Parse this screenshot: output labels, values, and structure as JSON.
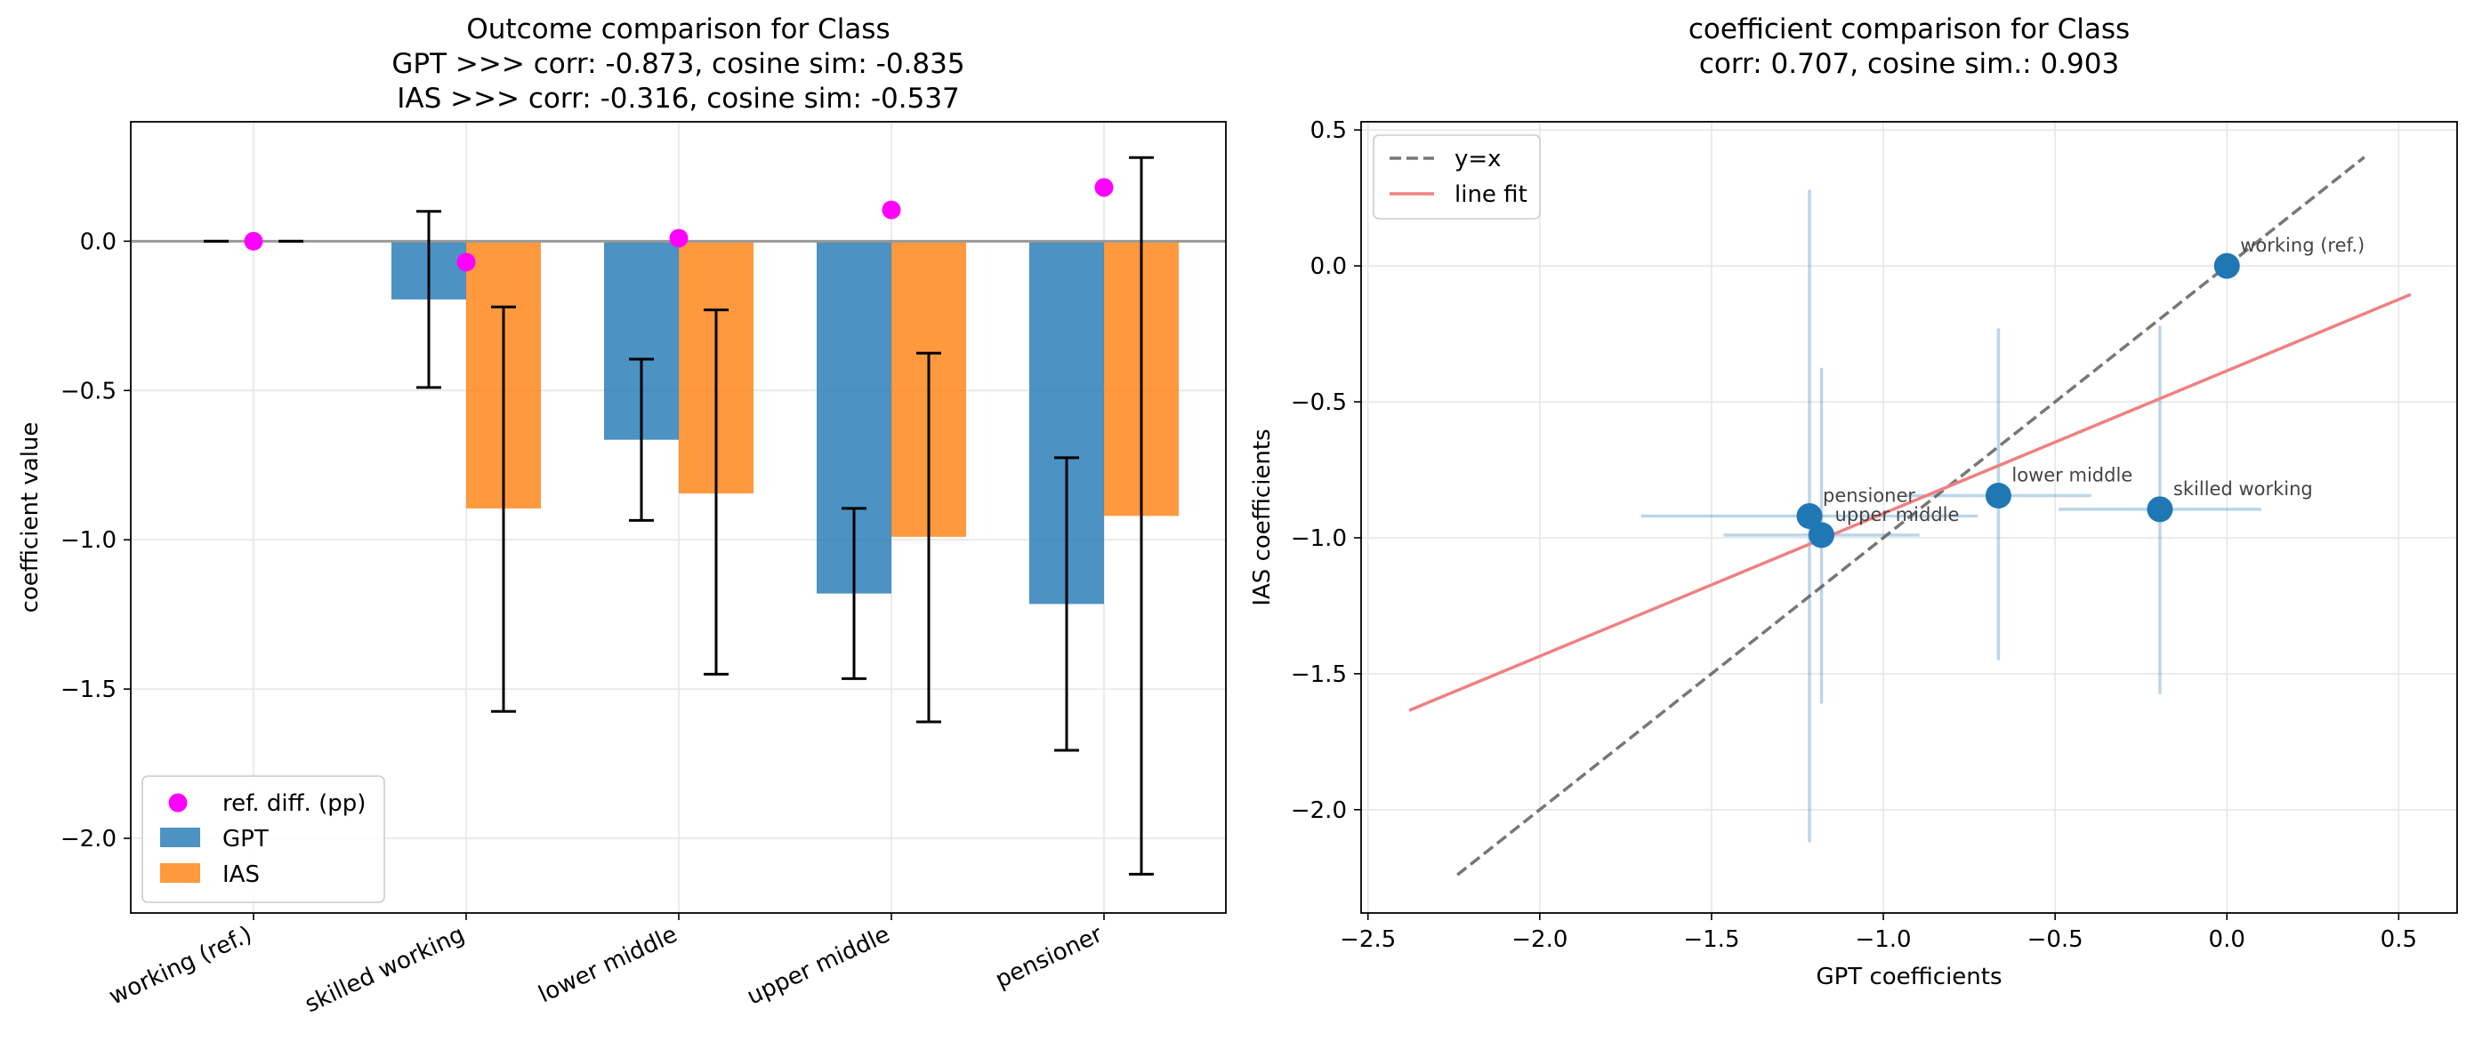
{
  "chart_data": [
    {
      "type": "bar",
      "title_lines": [
        "Outcome comparison for Class",
        "GPT >>> corr: -0.873,  cosine sim: -0.835",
        "IAS >>> corr: -0.316,  cosine sim: -0.537"
      ],
      "xlabel": "",
      "ylabel": "coefficient value",
      "ylim": [
        -2.25,
        0.4
      ],
      "yticks": [
        0.0,
        -0.5,
        -1.0,
        -1.5,
        -2.0
      ],
      "ytick_labels": [
        "0.0",
        "−0.5",
        "−1.0",
        "−1.5",
        "−2.0"
      ],
      "categories": [
        "working (ref.)",
        "skilled working",
        "lower middle",
        "upper middle",
        "pensioner"
      ],
      "series": [
        {
          "name": "GPT",
          "color": "#1f77b4",
          "values": [
            0.0,
            -0.195,
            -0.665,
            -1.18,
            -1.215
          ],
          "ci_low": [
            0.0,
            -0.49,
            -0.935,
            -1.465,
            -1.705
          ],
          "ci_high": [
            0.0,
            0.1,
            -0.395,
            -0.895,
            -0.725
          ]
        },
        {
          "name": "IAS",
          "color": "#ff7f0e",
          "values": [
            0.0,
            -0.895,
            -0.845,
            -0.99,
            -0.92
          ],
          "ci_low": [
            0.0,
            -1.575,
            -1.45,
            -1.61,
            -2.12
          ],
          "ci_high": [
            0.0,
            -0.22,
            -0.23,
            -0.375,
            0.28
          ]
        }
      ],
      "ref_diff": {
        "name": "ref. diff. (pp)",
        "color": "#ff00ff",
        "values": [
          0.0,
          -0.07,
          0.01,
          0.105,
          0.18
        ]
      },
      "legend": {
        "location": "lower-left",
        "entries": [
          "ref. diff. (pp)",
          "GPT",
          "IAS"
        ]
      }
    },
    {
      "type": "scatter",
      "title_lines": [
        "coefficient comparison for Class",
        "corr: 0.707, cosine sim.: 0.903"
      ],
      "xlabel": "GPT coefficients",
      "ylabel": "IAS coefficients",
      "xlim": [
        -2.52,
        0.67
      ],
      "ylim": [
        -2.38,
        0.53
      ],
      "xticks": [
        -2.5,
        -2.0,
        -1.5,
        -1.0,
        -0.5,
        0.0,
        0.5
      ],
      "xtick_labels": [
        "−2.5",
        "−2.0",
        "−1.5",
        "−1.0",
        "−0.5",
        "0.0",
        "0.5"
      ],
      "yticks": [
        0.5,
        0.0,
        -0.5,
        -1.0,
        -1.5,
        -2.0
      ],
      "ytick_labels": [
        "0.5",
        "0.0",
        "−0.5",
        "−1.0",
        "−1.5",
        "−2.0"
      ],
      "point_color": "#1f77b4",
      "points": [
        {
          "label": "working (ref.)",
          "x": 0.0,
          "y": 0.0,
          "x_low": 0.0,
          "x_high": 0.0,
          "y_low": 0.0,
          "y_high": 0.0
        },
        {
          "label": "skilled working",
          "x": -0.195,
          "y": -0.895,
          "x_low": -0.49,
          "x_high": 0.1,
          "y_low": -1.575,
          "y_high": -0.22
        },
        {
          "label": "lower middle",
          "x": -0.665,
          "y": -0.845,
          "x_low": -0.935,
          "x_high": -0.395,
          "y_low": -1.45,
          "y_high": -0.23
        },
        {
          "label": "upper middle",
          "x": -1.18,
          "y": -0.99,
          "x_low": -1.465,
          "x_high": -0.895,
          "y_low": -1.61,
          "y_high": -0.375
        },
        {
          "label": "pensioner",
          "x": -1.215,
          "y": -0.92,
          "x_low": -1.705,
          "x_high": -0.725,
          "y_low": -2.12,
          "y_high": 0.28
        }
      ],
      "identity_line": {
        "name": "y=x",
        "from": -2.24,
        "to": 0.4,
        "color": "#555555"
      },
      "fit_line": {
        "name": "line fit",
        "x_from": -2.38,
        "y_from": -1.635,
        "x_to": 0.535,
        "y_to": -0.105,
        "color": "#f08080"
      },
      "legend": {
        "location": "upper-left",
        "entries": [
          "y=x",
          "line fit"
        ]
      }
    }
  ]
}
